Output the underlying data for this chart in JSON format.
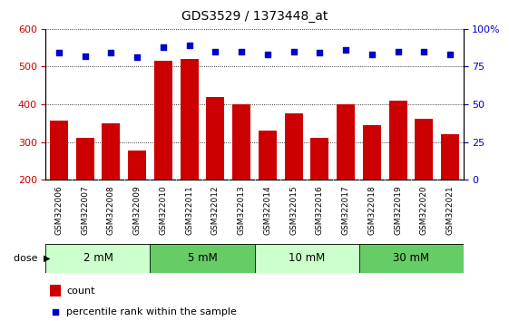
{
  "title": "GDS3529 / 1373448_at",
  "samples": [
    "GSM322006",
    "GSM322007",
    "GSM322008",
    "GSM322009",
    "GSM322010",
    "GSM322011",
    "GSM322012",
    "GSM322013",
    "GSM322014",
    "GSM322015",
    "GSM322016",
    "GSM322017",
    "GSM322018",
    "GSM322019",
    "GSM322020",
    "GSM322021"
  ],
  "counts": [
    358,
    312,
    350,
    278,
    515,
    520,
    420,
    400,
    330,
    376,
    312,
    400,
    345,
    410,
    362,
    320
  ],
  "percentiles": [
    84,
    82,
    84,
    81,
    88,
    89,
    85,
    85,
    83,
    85,
    84,
    86,
    83,
    85,
    85,
    83
  ],
  "dose_groups": [
    {
      "label": "2 mM",
      "start": 0,
      "end": 4,
      "color": "#ccffcc"
    },
    {
      "label": "5 mM",
      "start": 4,
      "end": 8,
      "color": "#66cc66"
    },
    {
      "label": "10 mM",
      "start": 8,
      "end": 12,
      "color": "#ccffcc"
    },
    {
      "label": "30 mM",
      "start": 12,
      "end": 16,
      "color": "#66cc66"
    }
  ],
  "ylim_left": [
    200,
    600
  ],
  "ylim_right": [
    0,
    100
  ],
  "yticks_left": [
    200,
    300,
    400,
    500,
    600
  ],
  "yticks_right": [
    0,
    25,
    50,
    75,
    100
  ],
  "bar_color": "#cc0000",
  "dot_color": "#0000cc",
  "tick_area_color": "#cccccc",
  "legend_count_color": "#cc0000",
  "legend_pct_color": "#0000cc",
  "plot_bg": "#ffffff"
}
